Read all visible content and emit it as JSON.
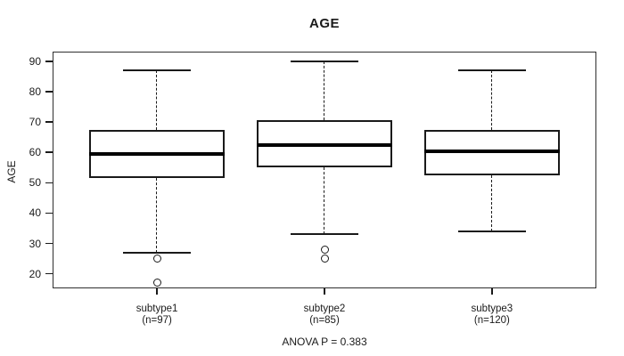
{
  "chart_data": {
    "type": "boxplot",
    "title": "AGE",
    "ylabel": "AGE",
    "annotation": "ANOVA P = 0.383",
    "yticks": [
      20,
      30,
      40,
      50,
      60,
      70,
      80,
      90
    ],
    "ylim": [
      15.2,
      93.2
    ],
    "grid": false,
    "legend": "none",
    "line_color": "#1a1a1a",
    "box_fill": "#ffffff",
    "groups": [
      {
        "label": "subtype1",
        "sublabel": "(n=97)",
        "n": 97,
        "whisker_low": 27,
        "q1": 51.5,
        "median": 59.5,
        "q3": 67.5,
        "whisker_high": 87,
        "outliers": [
          25,
          17
        ]
      },
      {
        "label": "subtype2",
        "sublabel": "(n=85)",
        "n": 85,
        "whisker_low": 33,
        "q1": 55,
        "median": 62.5,
        "q3": 70.5,
        "whisker_high": 90,
        "outliers": [
          28,
          25
        ]
      },
      {
        "label": "subtype3",
        "sublabel": "(n=120)",
        "n": 120,
        "whisker_low": 34,
        "q1": 52.5,
        "median": 60.5,
        "q3": 67.5,
        "whisker_high": 87,
        "outliers": []
      }
    ]
  }
}
